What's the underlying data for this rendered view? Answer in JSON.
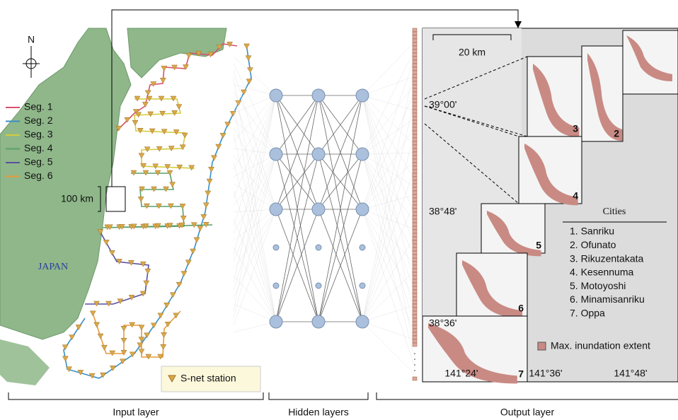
{
  "map": {
    "north": "N",
    "segments": [
      {
        "label": "Seg. 1",
        "color": "#d9506f"
      },
      {
        "label": "Seg. 2",
        "color": "#3a8fc4"
      },
      {
        "label": "Seg. 3",
        "color": "#d4cc3c"
      },
      {
        "label": "Seg. 4",
        "color": "#5aa06a"
      },
      {
        "label": "Seg. 5",
        "color": "#5a4fa0"
      },
      {
        "label": "Seg. 6",
        "color": "#e89a3a"
      }
    ],
    "scale": "100 km",
    "country": "JAPAN",
    "station_legend": "S-net station"
  },
  "output": {
    "scale": "20 km",
    "lat_labels": [
      "39°00'",
      "38°48'",
      "38°36'"
    ],
    "lon_labels": [
      "141°24'",
      "141°36'",
      "141°48'"
    ],
    "box_labels": [
      "3",
      "2",
      "4",
      "5",
      "6",
      "7"
    ],
    "cities_title": "Cities",
    "cities": [
      "1. Sanriku",
      "2. Ofunato",
      "3. Rikuzentakata",
      "4. Kesennuma",
      "5. Motoyoshi",
      "6. Minamisanriku",
      "7. Oppa"
    ],
    "legend": "Max. inundation extent"
  },
  "layers": [
    "Input layer",
    "Hidden layers",
    "Output layer"
  ]
}
